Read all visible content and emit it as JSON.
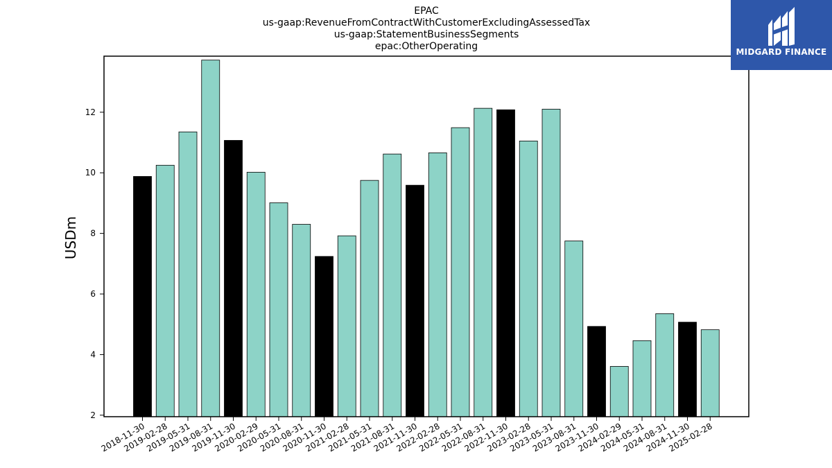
{
  "chart_data": {
    "type": "bar",
    "title_lines": [
      "EPAC",
      "us-gaap:RevenueFromContractWithCustomerExcludingAssessedTax",
      "us-gaap:StatementBusinessSegments",
      "epac:OtherOperating"
    ],
    "xlabel": "",
    "ylabel": "USDm",
    "ylim": [
      1.95,
      13.85
    ],
    "yticks": [
      2,
      4,
      6,
      8,
      10,
      12
    ],
    "grid": false,
    "categories": [
      "2018-11-30",
      "2019-02-28",
      "2019-05-31",
      "2019-08-31",
      "2019-11-30",
      "2020-02-29",
      "2020-05-31",
      "2020-08-31",
      "2020-11-30",
      "2021-02-28",
      "2021-05-31",
      "2021-08-31",
      "2021-11-30",
      "2022-02-28",
      "2022-05-31",
      "2022-08-31",
      "2022-11-30",
      "2023-02-28",
      "2023-05-31",
      "2023-08-31",
      "2023-11-30",
      "2024-02-29",
      "2024-05-31",
      "2024-08-31",
      "2024-11-30",
      "2025-02-28"
    ],
    "values": [
      9.88,
      10.25,
      11.35,
      13.72,
      11.07,
      10.02,
      9.01,
      8.3,
      7.24,
      7.92,
      9.75,
      10.62,
      9.59,
      10.66,
      11.49,
      12.13,
      12.08,
      11.05,
      12.1,
      7.75,
      4.93,
      3.61,
      4.46,
      5.35,
      5.07,
      4.82
    ],
    "bar_colors": [
      "#000000",
      "#8dd3c7",
      "#8dd3c7",
      "#8dd3c7",
      "#000000",
      "#8dd3c7",
      "#8dd3c7",
      "#8dd3c7",
      "#000000",
      "#8dd3c7",
      "#8dd3c7",
      "#8dd3c7",
      "#000000",
      "#8dd3c7",
      "#8dd3c7",
      "#8dd3c7",
      "#000000",
      "#8dd3c7",
      "#8dd3c7",
      "#8dd3c7",
      "#000000",
      "#8dd3c7",
      "#8dd3c7",
      "#8dd3c7",
      "#000000",
      "#8dd3c7"
    ]
  },
  "logo": {
    "text": "MIDGARD FINANCE",
    "background": "#2e57aa"
  }
}
